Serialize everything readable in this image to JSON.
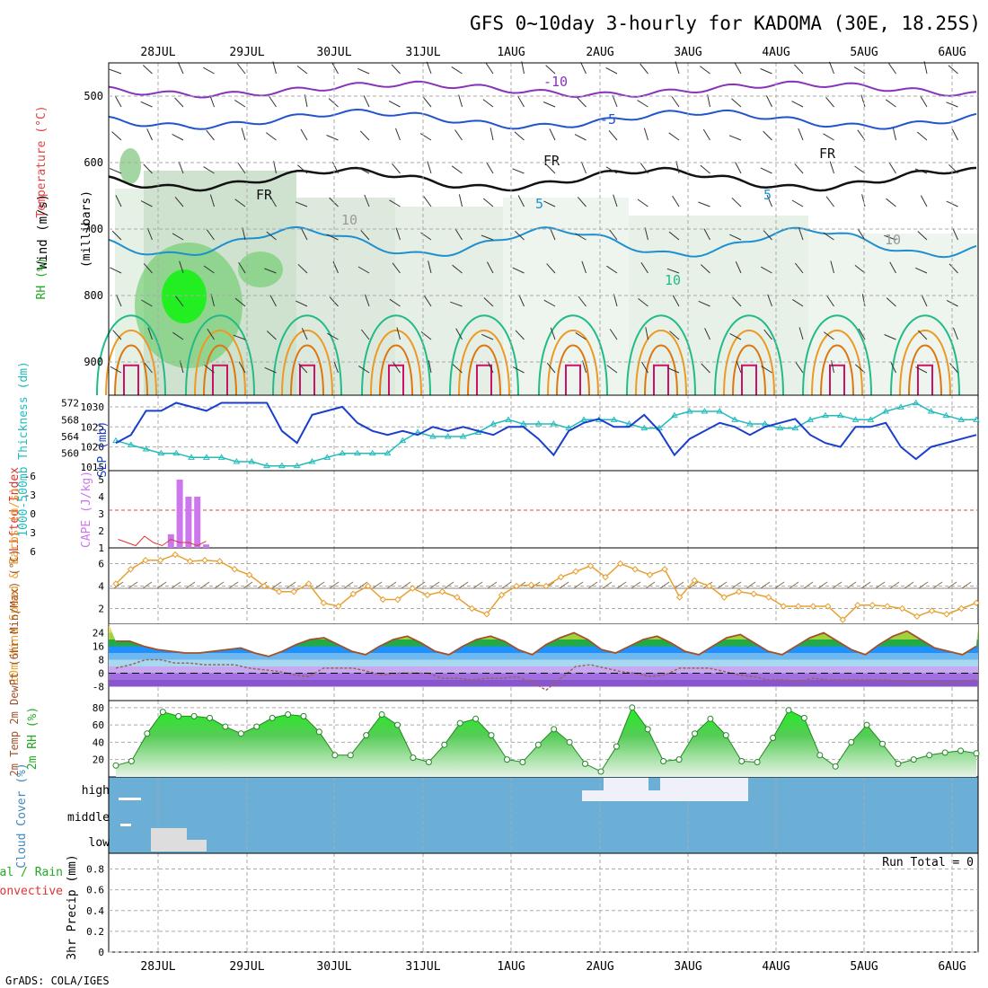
{
  "title": "GFS 0~10day 3-hourly for KADOMA (30E, 18.25S)",
  "footer": "GrADS: COLA/IGES",
  "dates": [
    "28JUL",
    "29JUL",
    "30JUL",
    "31JUL",
    "1AUG",
    "2AUG",
    "3AUG",
    "4AUG",
    "5AUG",
    "6AUG"
  ],
  "colors": {
    "grid": "#aaaaaa",
    "slp": "#1a3fcc",
    "thickness": "#22bbbb",
    "lifted": "#dd3333",
    "cape": "#cc77ee",
    "wind": "#e8a030",
    "barb": "#8b6b4a",
    "temp_fill": "#a0522d",
    "dewpoint": "#996655",
    "rh_green": "#22cc22",
    "cloud_bg": "#6baed6",
    "cloud_white": "#f0f0f8",
    "cloud_grey": "#dddddd"
  },
  "panels": {
    "upper": {
      "ylabel_wind": "Wind (m/s)",
      "ylabel_temp": "Temperature (°C)",
      "ylabel_rh": "RH (%)",
      "ylabel_mb": "(millibars)",
      "contour_labels": [
        "-10",
        "-5",
        "FR",
        "FR",
        "FR",
        "5",
        "5",
        "10",
        "10",
        "10"
      ],
      "chart_data": {
        "type": "heatmap",
        "y_ticks": [
          "500",
          "600",
          "700",
          "800",
          "900"
        ]
      }
    },
    "slp": {
      "ylabel_left": "1000-500mb Thickness (dm)",
      "ylabel_right": "SLP (mb)",
      "chart_data": {
        "type": "line",
        "x_ticks": [
          "28JUL",
          "29JUL",
          "30JUL",
          "31JUL",
          "1AUG",
          "2AUG",
          "3AUG",
          "4AUG",
          "5AUG",
          "6AUG"
        ],
        "left_ticks": [
          "572",
          "568",
          "564",
          "560"
        ],
        "right_ticks": [
          "1030",
          "1025",
          "1020",
          "1015"
        ],
        "series": [
          {
            "name": "SLP",
            "values": [
              1021,
              1023,
              1029,
              1029,
              1031,
              1030,
              1029,
              1031,
              1031,
              1031,
              1031,
              1024,
              1021,
              1028,
              1029,
              1030,
              1026,
              1024,
              1023,
              1024,
              1023,
              1025,
              1024,
              1025,
              1024,
              1023,
              1025,
              1025,
              1022,
              1018,
              1024,
              1026,
              1027,
              1025,
              1025,
              1028,
              1024,
              1018,
              1022,
              1024,
              1026,
              1025,
              1023,
              1025,
              1026,
              1027,
              1023,
              1021,
              1020,
              1025,
              1025,
              1026,
              1020,
              1017,
              1020,
              1021,
              1022,
              1023
            ]
          },
          {
            "name": "Thickness",
            "values": [
              563,
              562,
              561,
              560,
              560,
              559,
              559,
              559,
              558,
              558,
              557,
              557,
              557,
              558,
              559,
              560,
              560,
              560,
              560,
              563,
              565,
              564,
              564,
              564,
              565,
              567,
              568,
              567,
              567,
              567,
              566,
              568,
              568,
              568,
              567,
              566,
              566,
              569,
              570,
              570,
              570,
              568,
              567,
              567,
              566,
              566,
              568,
              569,
              569,
              568,
              568,
              570,
              571,
              572,
              570,
              569,
              568,
              568
            ]
          }
        ]
      }
    },
    "cape": {
      "ylabel_left": "Lifted Index",
      "ylabel_right": "CAPE (J/kg)",
      "chart_data": {
        "type": "bar",
        "left_ticks": [
          "-6",
          "-3",
          "0",
          "3",
          "6"
        ],
        "right_ticks": [
          "5",
          "4",
          "3",
          "2",
          "1"
        ],
        "series": [
          {
            "name": "CAPE",
            "values": [
              1,
              1,
              1,
              1,
              1,
              1,
              1.8,
              5,
              4,
              4,
              1.2
            ]
          },
          {
            "name": "Lifted Index",
            "values": [
              3.5,
              4,
              4.5,
              3,
              4,
              4.5,
              3.5,
              4,
              4,
              4.5,
              3.8
            ]
          }
        ]
      }
    },
    "wind10": {
      "ylabel": "10m Wind Speed & Barbs (m/s)",
      "chart_data": {
        "type": "line",
        "y_ticks": [
          "6",
          "4",
          "2"
        ],
        "series": [
          {
            "name": "Speed",
            "values": [
              4.2,
              5.5,
              6.3,
              6.3,
              6.8,
              6.2,
              6.3,
              6.2,
              5.5,
              5,
              4,
              3.5,
              3.5,
              4.2,
              2.5,
              2.2,
              3.3,
              4,
              2.8,
              2.8,
              3.8,
              3.2,
              3.5,
              3,
              2,
              1.5,
              3.2,
              4,
              4.1,
              4,
              4.8,
              5.3,
              5.8,
              4.8,
              6,
              5.5,
              5,
              5.5,
              3,
              4.5,
              4,
              3,
              3.5,
              3.3,
              3,
              2.2,
              2.2,
              2.2,
              2.2,
              1,
              2.3,
              2.3,
              2.2,
              2,
              1.3,
              1.8,
              1.5,
              2,
              2.5
            ]
          }
        ]
      }
    },
    "temp2m": {
      "ylabel": "2m Temp 2m DewPt (6hr Min/Max) (°C)",
      "chart_data": {
        "type": "area",
        "y_ticks": [
          "24",
          "16",
          "8",
          "0",
          "-8"
        ],
        "series": [
          {
            "name": "Temp",
            "values": [
              19,
              19,
              16,
              14,
              13,
              12,
              12,
              13,
              14,
              15,
              12,
              10,
              13,
              17,
              20,
              21,
              17,
              13,
              11,
              16,
              20,
              22,
              18,
              13,
              11,
              16,
              20,
              22,
              19,
              14,
              11,
              17,
              21,
              24,
              20,
              14,
              12,
              16,
              20,
              22,
              18,
              13,
              11,
              16,
              21,
              23,
              18,
              13,
              11,
              16,
              21,
              24,
              19,
              14,
              11,
              17,
              22,
              25,
              20,
              15,
              13,
              11,
              16
            ]
          },
          {
            "name": "DewPt",
            "values": [
              3,
              5,
              8,
              8,
              6,
              6,
              5,
              5,
              5,
              3,
              2,
              1,
              -1,
              -2,
              3,
              3,
              3,
              1,
              -1,
              0,
              0,
              0,
              -3,
              -3,
              -4,
              -3,
              -3,
              -2,
              -5,
              -10,
              -3,
              4,
              5,
              3,
              1,
              0,
              -2,
              -1,
              3,
              3,
              3,
              1,
              -1,
              -2,
              -4,
              -4,
              -5,
              -3,
              -4,
              -4,
              -4,
              -4,
              -4,
              -5,
              -5,
              -5,
              -6,
              -5,
              -4
            ]
          }
        ]
      }
    },
    "rh2m": {
      "ylabel": "2m RH (%)",
      "chart_data": {
        "type": "area",
        "y_ticks": [
          "80",
          "60",
          "40",
          "20"
        ],
        "series": [
          {
            "name": "RH",
            "values": [
              13,
              18,
              50,
              75,
              70,
              70,
              68,
              58,
              50,
              58,
              68,
              72,
              70,
              52,
              25,
              25,
              48,
              72,
              60,
              22,
              17,
              37,
              62,
              67,
              48,
              20,
              17,
              37,
              55,
              40,
              15,
              6,
              35,
              80,
              55,
              18,
              20,
              50,
              67,
              48,
              18,
              17,
              45,
              77,
              68,
              25,
              12,
              40,
              60,
              38,
              15,
              20,
              25,
              28,
              30,
              27
            ]
          }
        ]
      }
    },
    "cloud": {
      "ylabel": "Cloud Cover (%)",
      "levels": [
        "high",
        "middle",
        "low"
      ]
    },
    "precip": {
      "ylabel_a": "Total / Rain",
      "ylabel_b": "Convective",
      "ylabel_c": "3hr Precip (mm)",
      "run_total": "Run Total = 0",
      "chart_data": {
        "type": "bar",
        "y_ticks": [
          "0.8",
          "0.6",
          "0.4",
          "0.2",
          "0"
        ],
        "values": []
      }
    }
  }
}
